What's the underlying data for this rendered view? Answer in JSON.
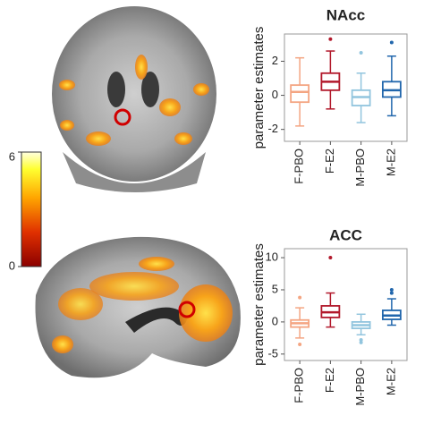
{
  "chart_data": [
    {
      "type": "box",
      "title": "NAcc",
      "y_label": "parameter estimates",
      "categories": [
        "F-PBO",
        "F-E2",
        "M-PBO",
        "M-E2"
      ],
      "boxes": [
        {
          "color": "#f4a582",
          "low": -1.8,
          "q1": -0.4,
          "median": 0.2,
          "q3": 0.6,
          "high": 2.2,
          "outliers": []
        },
        {
          "color": "#b2182b",
          "low": -0.8,
          "q1": 0.3,
          "median": 0.8,
          "q3": 1.3,
          "high": 2.6,
          "outliers": [
            3.3
          ]
        },
        {
          "color": "#92c5de",
          "low": -1.6,
          "q1": -0.6,
          "median": -0.1,
          "q3": 0.3,
          "high": 1.3,
          "outliers": [
            2.5
          ]
        },
        {
          "color": "#2166ac",
          "low": -1.2,
          "q1": -0.1,
          "median": 0.3,
          "q3": 0.8,
          "high": 2.3,
          "outliers": [
            3.1
          ]
        }
      ],
      "ylim": [
        -2.7,
        3.6
      ],
      "yticks": [
        -2,
        0,
        2
      ]
    },
    {
      "type": "box",
      "title": "ACC",
      "y_label": "parameter estimates",
      "categories": [
        "F-PBO",
        "F-E2",
        "M-PBO",
        "M-E2"
      ],
      "boxes": [
        {
          "color": "#f4a582",
          "low": -2.5,
          "q1": -0.8,
          "median": -0.2,
          "q3": 0.3,
          "high": 2.2,
          "outliers": [
            3.8,
            -3.5
          ]
        },
        {
          "color": "#b2182b",
          "low": -0.8,
          "q1": 0.7,
          "median": 1.5,
          "q3": 2.5,
          "high": 4.5,
          "outliers": [
            10
          ]
        },
        {
          "color": "#92c5de",
          "low": -2.0,
          "q1": -1.0,
          "median": -0.5,
          "q3": 0,
          "high": 1.2,
          "outliers": [
            -2.8,
            -3.2
          ]
        },
        {
          "color": "#2166ac",
          "low": -0.5,
          "q1": 0.4,
          "median": 1.0,
          "q3": 1.8,
          "high": 3.6,
          "outliers": [
            4.5,
            5.0
          ]
        }
      ],
      "ylim": [
        -6,
        11.4
      ],
      "yticks": [
        -5,
        0,
        5,
        10
      ]
    },
    {
      "type": "colorbar",
      "ylim": [
        0,
        6
      ],
      "yticks": [
        0,
        6
      ]
    }
  ]
}
